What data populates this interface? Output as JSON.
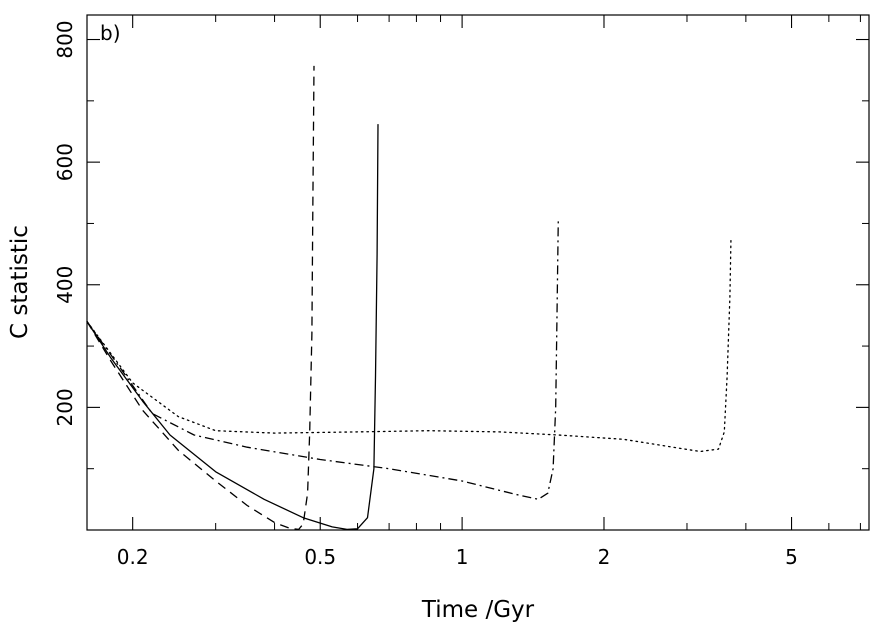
{
  "chart_data": {
    "type": "line",
    "panel_label": "b)",
    "xlabel": "Time /Gyr",
    "ylabel": "C statistic",
    "xscale": "log",
    "xlim": [
      0.16,
      7.3
    ],
    "ylim": [
      0,
      840
    ],
    "xticks_major": [
      0.2,
      0.5,
      1,
      2,
      5
    ],
    "xtick_labels": [
      "0.2",
      "0.5",
      "1",
      "2",
      "5"
    ],
    "xticks_minor": [
      0.3,
      0.4,
      0.6,
      0.7,
      0.8,
      0.9,
      3,
      4,
      6,
      7
    ],
    "yticks_major": [
      200,
      400,
      600,
      800
    ],
    "ytick_labels": [
      "200",
      "400",
      "600",
      "800"
    ],
    "yticks_minor": [
      100,
      300,
      500,
      700
    ],
    "grid": false,
    "legend": "none",
    "series": [
      {
        "dash": "solid",
        "points": [
          [
            0.16,
            340
          ],
          [
            0.18,
            280
          ],
          [
            0.21,
            210
          ],
          [
            0.24,
            155
          ],
          [
            0.3,
            95
          ],
          [
            0.38,
            50
          ],
          [
            0.46,
            20
          ],
          [
            0.53,
            5
          ],
          [
            0.57,
            1
          ],
          [
            0.6,
            2
          ],
          [
            0.63,
            20
          ],
          [
            0.65,
            100
          ],
          [
            0.655,
            250
          ],
          [
            0.66,
            450
          ],
          [
            0.663,
            662
          ]
        ]
      },
      {
        "dash": "dashed",
        "points": [
          [
            0.16,
            340
          ],
          [
            0.18,
            275
          ],
          [
            0.21,
            195
          ],
          [
            0.25,
            130
          ],
          [
            0.3,
            80
          ],
          [
            0.35,
            40
          ],
          [
            0.4,
            12
          ],
          [
            0.43,
            3
          ],
          [
            0.45,
            1
          ],
          [
            0.46,
            10
          ],
          [
            0.47,
            60
          ],
          [
            0.475,
            160
          ],
          [
            0.48,
            320
          ],
          [
            0.482,
            500
          ],
          [
            0.485,
            757
          ]
        ]
      },
      {
        "dash": "dashdot",
        "points": [
          [
            0.16,
            340
          ],
          [
            0.19,
            260
          ],
          [
            0.22,
            190
          ],
          [
            0.27,
            155
          ],
          [
            0.35,
            135
          ],
          [
            0.5,
            115
          ],
          [
            0.7,
            100
          ],
          [
            1.0,
            80
          ],
          [
            1.3,
            58
          ],
          [
            1.45,
            50
          ],
          [
            1.52,
            60
          ],
          [
            1.56,
            100
          ],
          [
            1.58,
            200
          ],
          [
            1.59,
            350
          ],
          [
            1.6,
            508
          ]
        ]
      },
      {
        "dash": "dotted",
        "points": [
          [
            0.16,
            340
          ],
          [
            0.2,
            240
          ],
          [
            0.25,
            185
          ],
          [
            0.3,
            162
          ],
          [
            0.4,
            158
          ],
          [
            0.6,
            160
          ],
          [
            0.85,
            162
          ],
          [
            1.2,
            160
          ],
          [
            1.6,
            155
          ],
          [
            2.2,
            148
          ],
          [
            2.8,
            135
          ],
          [
            3.2,
            128
          ],
          [
            3.5,
            132
          ],
          [
            3.6,
            160
          ],
          [
            3.65,
            250
          ],
          [
            3.7,
            380
          ],
          [
            3.72,
            478
          ]
        ]
      }
    ]
  }
}
